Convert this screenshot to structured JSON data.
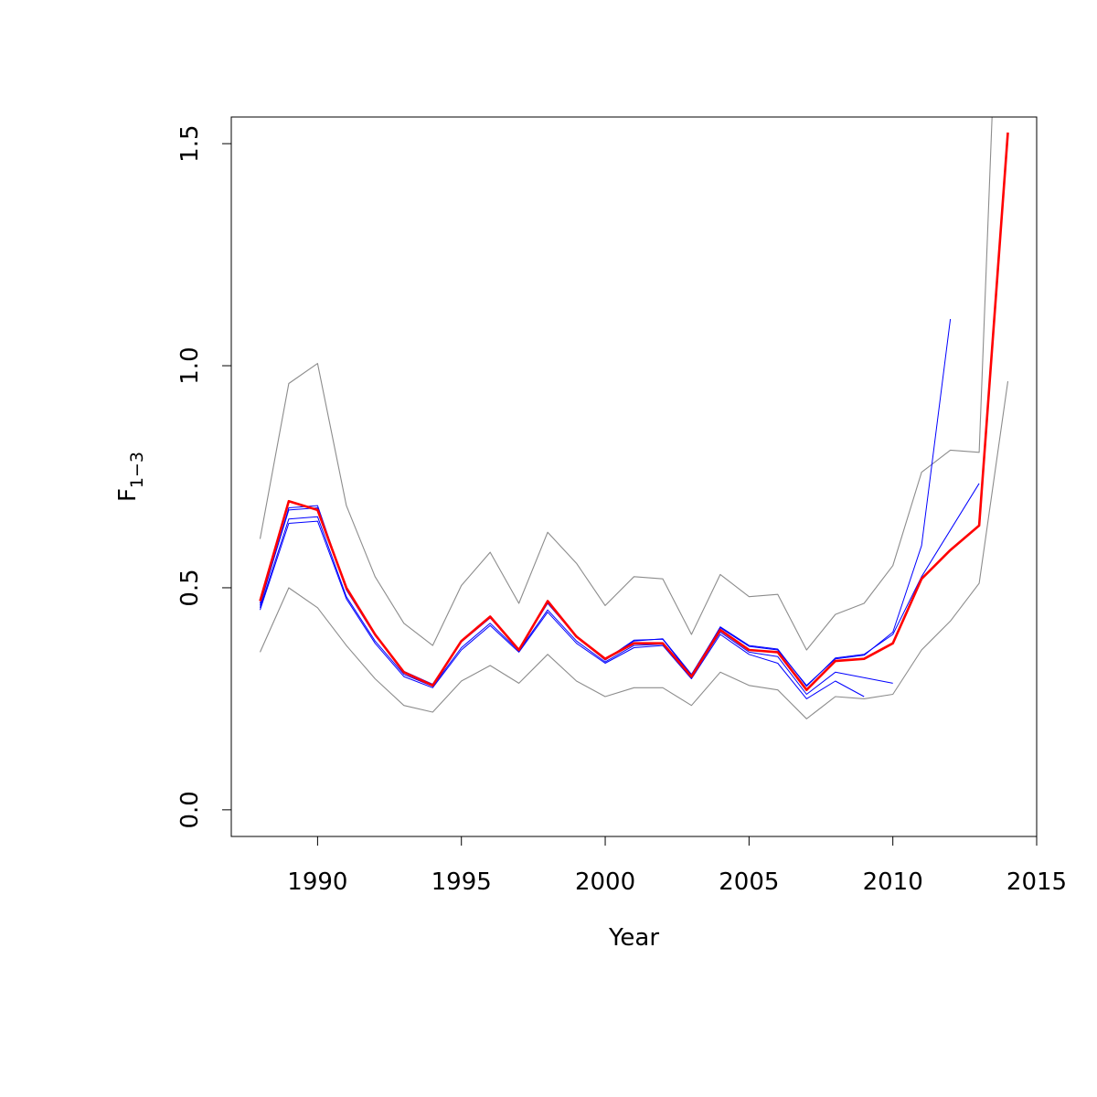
{
  "chart_data": {
    "type": "line",
    "title": "",
    "xlabel": "Year",
    "ylabel": {
      "base": "F",
      "subscript": "1−3"
    },
    "xlim": [
      1987,
      2015
    ],
    "ylim": [
      -0.06,
      1.56
    ],
    "x_ticks": [
      1990,
      1995,
      2000,
      2005,
      2010,
      2015
    ],
    "y_ticks": [
      0.0,
      0.5,
      1.0,
      1.5
    ],
    "y_tick_labels": [
      "0.0",
      "0.5",
      "1.0",
      "1.5"
    ],
    "grid": false,
    "legend": "none",
    "series": [
      {
        "role": "upper-bound",
        "color": "#8c8c8c",
        "x": [
          1988,
          1989,
          1990,
          1991,
          1992,
          1993,
          1994,
          1995,
          1996,
          1997,
          1998,
          1999,
          2000,
          2001,
          2002,
          2003,
          2004,
          2005,
          2006,
          2007,
          2008,
          2009,
          2010,
          2011,
          2012,
          2013,
          2013.45
        ],
        "y": [
          0.61,
          0.96,
          1.005,
          0.685,
          0.525,
          0.42,
          0.37,
          0.505,
          0.58,
          0.465,
          0.625,
          0.555,
          0.46,
          0.525,
          0.52,
          0.395,
          0.53,
          0.48,
          0.485,
          0.36,
          0.44,
          0.465,
          0.55,
          0.76,
          0.81,
          0.805,
          1.56
        ]
      },
      {
        "role": "lower-bound",
        "color": "#8c8c8c",
        "x": [
          1988,
          1989,
          1990,
          1991,
          1992,
          1993,
          1994,
          1995,
          1996,
          1997,
          1998,
          1999,
          2000,
          2001,
          2002,
          2003,
          2004,
          2005,
          2006,
          2007,
          2008,
          2009,
          2010,
          2011,
          2012,
          2013,
          2014
        ],
        "y": [
          0.355,
          0.5,
          0.455,
          0.37,
          0.295,
          0.235,
          0.22,
          0.29,
          0.325,
          0.285,
          0.35,
          0.29,
          0.255,
          0.275,
          0.275,
          0.235,
          0.31,
          0.28,
          0.27,
          0.205,
          0.255,
          0.25,
          0.26,
          0.36,
          0.425,
          0.51,
          0.965
        ]
      },
      {
        "role": "retrospective-2009",
        "color": "#0000ff",
        "x": [
          1988,
          1989,
          1990,
          1991,
          1992,
          1993,
          1994,
          1995,
          1996,
          1997,
          1998,
          1999,
          2000,
          2001,
          2002,
          2003,
          2004,
          2005,
          2006,
          2007,
          2008,
          2009
        ],
        "y": [
          0.45,
          0.645,
          0.65,
          0.475,
          0.375,
          0.3,
          0.275,
          0.36,
          0.415,
          0.355,
          0.445,
          0.375,
          0.33,
          0.365,
          0.37,
          0.295,
          0.395,
          0.35,
          0.33,
          0.25,
          0.29,
          0.255
        ]
      },
      {
        "role": "retrospective-2010",
        "color": "#0000ff",
        "x": [
          1988,
          1989,
          1990,
          1991,
          1992,
          1993,
          1994,
          1995,
          1996,
          1997,
          1998,
          1999,
          2000,
          2001,
          2002,
          2003,
          2004,
          2005,
          2006,
          2007,
          2008,
          2010
        ],
        "y": [
          0.455,
          0.655,
          0.66,
          0.48,
          0.38,
          0.305,
          0.278,
          0.365,
          0.42,
          0.358,
          0.45,
          0.38,
          0.333,
          0.37,
          0.373,
          0.298,
          0.4,
          0.355,
          0.345,
          0.26,
          0.31,
          0.285
        ]
      },
      {
        "role": "retrospective-2012",
        "color": "#0000ff",
        "x": [
          1988,
          1989,
          1990,
          1991,
          1992,
          1993,
          1994,
          1995,
          1996,
          1997,
          1998,
          1999,
          2000,
          2001,
          2002,
          2003,
          2004,
          2005,
          2006,
          2007,
          2008,
          2009,
          2010,
          2011,
          2012
        ],
        "y": [
          0.465,
          0.675,
          0.68,
          0.495,
          0.392,
          0.312,
          0.283,
          0.378,
          0.432,
          0.362,
          0.465,
          0.39,
          0.337,
          0.38,
          0.385,
          0.305,
          0.41,
          0.368,
          0.36,
          0.28,
          0.34,
          0.348,
          0.4,
          0.595,
          1.105
        ]
      },
      {
        "role": "retrospective-2013",
        "color": "#0000ff",
        "x": [
          1988,
          1989,
          1990,
          1991,
          1992,
          1993,
          1994,
          1995,
          1996,
          1997,
          1998,
          1999,
          2000,
          2001,
          2002,
          2003,
          2004,
          2005,
          2006,
          2007,
          2008,
          2009,
          2010,
          2011,
          2013
        ],
        "y": [
          0.46,
          0.68,
          0.685,
          0.497,
          0.395,
          0.31,
          0.28,
          0.38,
          0.435,
          0.36,
          0.468,
          0.392,
          0.338,
          0.382,
          0.384,
          0.302,
          0.412,
          0.37,
          0.362,
          0.278,
          0.342,
          0.35,
          0.395,
          0.525,
          0.735
        ]
      },
      {
        "role": "final-estimate",
        "color": "#ff0000",
        "x": [
          1988,
          1989,
          1990,
          1991,
          1992,
          1993,
          1994,
          1995,
          1996,
          1997,
          1998,
          1999,
          2000,
          2001,
          2002,
          2003,
          2004,
          2005,
          2006,
          2007,
          2008,
          2009,
          2010,
          2011,
          2012,
          2013,
          2014
        ],
        "y": [
          0.47,
          0.695,
          0.675,
          0.5,
          0.395,
          0.31,
          0.28,
          0.38,
          0.435,
          0.36,
          0.47,
          0.39,
          0.34,
          0.375,
          0.375,
          0.3,
          0.405,
          0.36,
          0.355,
          0.27,
          0.335,
          0.34,
          0.375,
          0.52,
          0.585,
          0.64,
          1.525
        ]
      }
    ]
  }
}
